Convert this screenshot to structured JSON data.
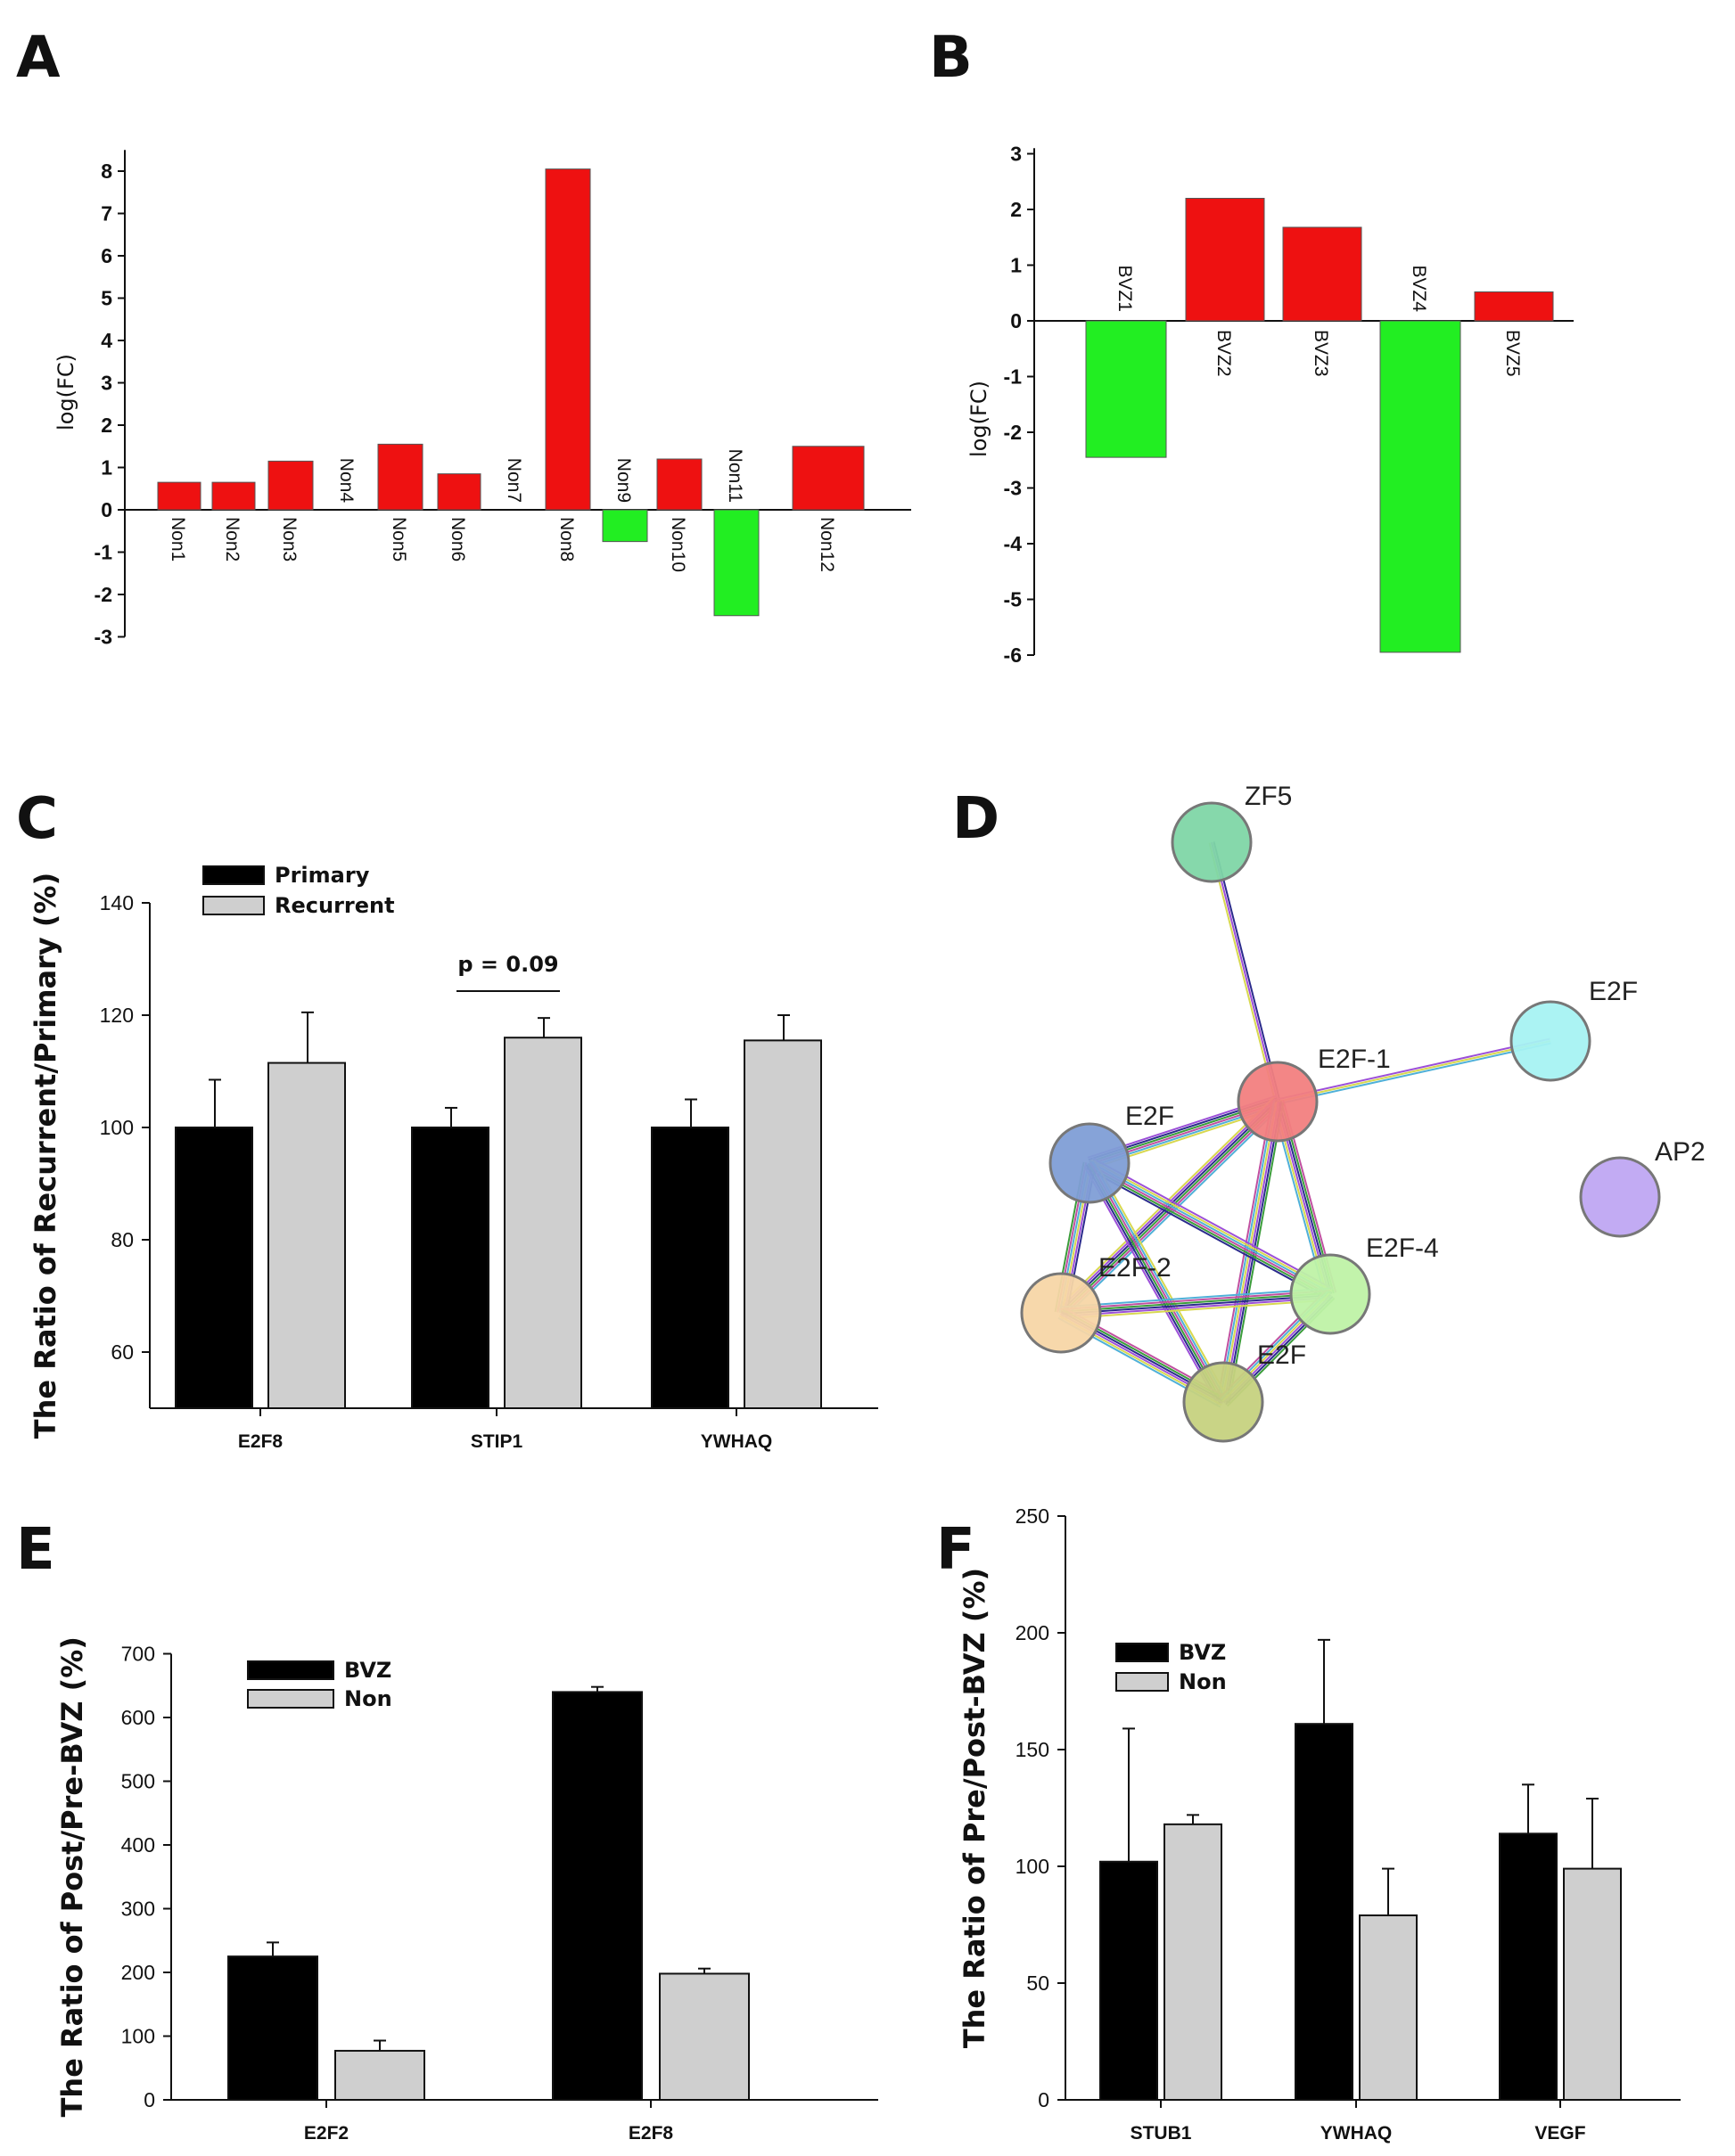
{
  "panels": {
    "A": {
      "letter": "A"
    },
    "B": {
      "letter": "B"
    },
    "C": {
      "letter": "C"
    },
    "D": {
      "letter": "D"
    },
    "E": {
      "letter": "E"
    },
    "F": {
      "letter": "F"
    }
  },
  "colors": {
    "up": "#ee1111",
    "down": "#22ee22",
    "black": "#000000",
    "gray": "#cfcfcf"
  },
  "chart_data": [
    {
      "id": "A",
      "type": "bar",
      "ylabel": "log(FC)",
      "ylim": [
        -3,
        8
      ],
      "yticks": [
        -3,
        -2,
        -1,
        0,
        1,
        2,
        3,
        4,
        5,
        6,
        7,
        8
      ],
      "categories": [
        "Non1",
        "Non2",
        "Non3",
        "Non4",
        "Non5",
        "Non6",
        "Non7",
        "Non8",
        "Non9",
        "Non10",
        "Non11",
        "Non12"
      ],
      "values": [
        0.65,
        0.65,
        1.15,
        0,
        1.55,
        0.85,
        0,
        8.05,
        -0.75,
        1.2,
        -2.5,
        1.5
      ]
    },
    {
      "id": "B",
      "type": "bar",
      "ylabel": "log(FC)",
      "ylim": [
        -6,
        3
      ],
      "yticks": [
        -6,
        -5,
        -4,
        -3,
        -2,
        -1,
        0,
        1,
        2,
        3
      ],
      "categories": [
        "BVZ1",
        "BVZ2",
        "BVZ3",
        "BVZ4",
        "BVZ5"
      ],
      "values": [
        -2.45,
        2.2,
        1.68,
        -5.95,
        0.52
      ]
    },
    {
      "id": "C",
      "type": "bar",
      "ylabel": "The Ratio of Recurrent/Primary (%)",
      "ylim": [
        50,
        140
      ],
      "yticks": [
        60,
        80,
        100,
        120,
        140
      ],
      "categories": [
        "E2F8",
        "STIP1",
        "YWHAQ"
      ],
      "series": [
        {
          "name": "Primary",
          "values": [
            100,
            100,
            100
          ],
          "errors": [
            8.5,
            3.5,
            5
          ]
        },
        {
          "name": "Recurrent",
          "values": [
            111.5,
            116,
            115.5
          ],
          "errors": [
            9,
            3.5,
            4.5
          ]
        }
      ],
      "annotation": "p = 0.09"
    },
    {
      "id": "E",
      "type": "bar",
      "ylabel": "The Ratio of Post/Pre-BVZ (%)",
      "ylim": [
        0,
        700
      ],
      "yticks": [
        0,
        100,
        200,
        300,
        400,
        500,
        600,
        700
      ],
      "categories": [
        "E2F2",
        "E2F8"
      ],
      "series": [
        {
          "name": "BVZ",
          "values": [
            225,
            640
          ],
          "errors": [
            22,
            8
          ]
        },
        {
          "name": "Non",
          "values": [
            77,
            198
          ],
          "errors": [
            16,
            8
          ]
        }
      ]
    },
    {
      "id": "F",
      "type": "bar",
      "ylabel": "The Ratio of Pre/Post-BVZ (%)",
      "ylim": [
        0,
        250
      ],
      "yticks": [
        0,
        50,
        100,
        150,
        200,
        250
      ],
      "categories": [
        "STUB1",
        "YWHAQ",
        "VEGF"
      ],
      "series": [
        {
          "name": "BVZ",
          "values": [
            102,
            161,
            114
          ],
          "errors": [
            57,
            36,
            21
          ]
        },
        {
          "name": "Non",
          "values": [
            118,
            79,
            99
          ],
          "errors": [
            4,
            20,
            30
          ]
        }
      ]
    }
  ],
  "network": {
    "nodes": [
      {
        "id": "ZF5",
        "label": "ZF5",
        "color": "#7fd6a6"
      },
      {
        "id": "E2F_top",
        "label": "E2F",
        "color": "#a6f2f2"
      },
      {
        "id": "E2F1",
        "label": "E2F-1",
        "color": "#f27f7f"
      },
      {
        "id": "E2F_blue",
        "label": "E2F",
        "color": "#7f9ed6"
      },
      {
        "id": "AP2",
        "label": "AP2",
        "color": "#bfa6f2"
      },
      {
        "id": "E2F4",
        "label": "E2F-4",
        "color": "#bff2a6"
      },
      {
        "id": "E2F2",
        "label": "E2F-2",
        "color": "#f7d6a6"
      },
      {
        "id": "E2F_olive",
        "label": "E2F",
        "color": "#c6d27f"
      }
    ],
    "edges": [
      [
        "ZF5",
        "E2F1"
      ],
      [
        "E2F1",
        "E2F_top"
      ],
      [
        "E2F1",
        "E2F_blue"
      ],
      [
        "E2F1",
        "E2F2"
      ],
      [
        "E2F1",
        "E2F4"
      ],
      [
        "E2F1",
        "E2F_olive"
      ],
      [
        "E2F_blue",
        "E2F2"
      ],
      [
        "E2F_blue",
        "E2F4"
      ],
      [
        "E2F_blue",
        "E2F_olive"
      ],
      [
        "E2F2",
        "E2F4"
      ],
      [
        "E2F2",
        "E2F_olive"
      ],
      [
        "E2F4",
        "E2F_olive"
      ]
    ]
  }
}
